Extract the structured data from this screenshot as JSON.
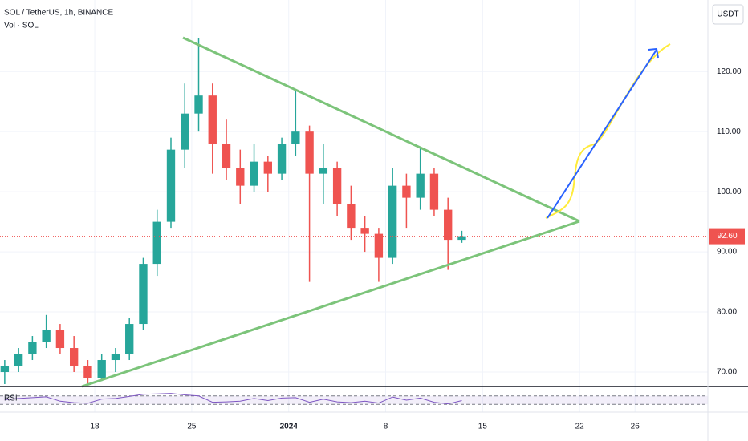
{
  "chart_data": {
    "type": "candlestick",
    "title": "SOL / TetherUS, 1h, BINANCE",
    "subtitle": "Vol · SOL",
    "currency": "USDT",
    "x": [
      -6.5,
      -5.5,
      -4.5,
      -3.5,
      -2.5,
      -1.5,
      -0.5,
      0.5,
      1.5,
      2.5,
      3.5,
      4.5,
      5.5,
      6.5,
      7.5,
      8.5,
      9.5,
      10.5,
      11.5,
      12.5,
      13.5,
      14.5,
      15.5,
      16.5,
      17.5,
      18.5,
      19.5,
      20.5,
      21.5,
      22.5,
      23.5,
      24.5,
      25.5,
      26.5
    ],
    "open": [
      70,
      71,
      73,
      75,
      77,
      74,
      71,
      69,
      72,
      73,
      78,
      88,
      95,
      107,
      113,
      116,
      108,
      104,
      101,
      105,
      103,
      108,
      110,
      103,
      104,
      98,
      94,
      93,
      89,
      101,
      99,
      103,
      97,
      92
    ],
    "high": [
      72,
      74,
      76,
      79.5,
      78,
      76,
      72,
      73,
      74,
      79,
      89,
      97,
      109,
      118,
      125.5,
      118,
      112,
      107,
      108,
      106,
      109,
      117,
      111,
      108,
      105,
      101,
      96,
      94,
      104,
      103,
      107.5,
      104,
      99,
      93.5
    ],
    "low": [
      68,
      70,
      72,
      74,
      73,
      70,
      67.8,
      68.5,
      70,
      72,
      77,
      86,
      94,
      104,
      110,
      103,
      102,
      98,
      100,
      100,
      102,
      106,
      85,
      98,
      96,
      92,
      90,
      85,
      88,
      94,
      97,
      96,
      87,
      91.5
    ],
    "close": [
      71,
      73,
      75,
      77,
      74,
      71,
      69,
      72,
      73,
      78,
      88,
      95,
      107,
      113,
      116,
      108,
      104,
      101,
      105,
      103,
      108,
      110,
      103,
      104,
      98,
      94,
      93,
      89,
      101,
      99,
      103,
      97,
      92,
      92.6
    ],
    "up_color": "#26a69a",
    "down_color": "#ef5350",
    "xlim": [
      -6.84,
      44.26
    ],
    "ylim": [
      67.6,
      131.9
    ],
    "xticks": [
      {
        "value": 0,
        "label": "18"
      },
      {
        "value": 7,
        "label": "25"
      },
      {
        "value": 14,
        "label": "2024"
      },
      {
        "value": 21,
        "label": "8"
      },
      {
        "value": 28,
        "label": "15"
      },
      {
        "value": 35,
        "label": "22"
      },
      {
        "value": 39,
        "label": "26"
      }
    ],
    "yticks": [
      {
        "value": 70,
        "label": "70.00"
      },
      {
        "value": 80,
        "label": "80.00"
      },
      {
        "value": 90,
        "label": "90.00"
      },
      {
        "value": 100,
        "label": "100.00"
      },
      {
        "value": 110,
        "label": "110.00"
      },
      {
        "value": 120,
        "label": "120.00"
      }
    ],
    "grid": true,
    "last_price": {
      "value": 92.6,
      "label": "92.60"
    },
    "rsi": {
      "name": "RSI",
      "color": "#7e57c2",
      "ylim": [
        0,
        100
      ],
      "bands": [
        30,
        70
      ],
      "values": [
        52,
        58,
        62,
        66,
        45,
        38,
        35,
        55,
        58,
        68,
        78,
        80,
        82,
        75,
        70,
        40,
        42,
        45,
        58,
        48,
        60,
        62,
        40,
        55,
        42,
        38,
        45,
        36,
        65,
        50,
        60,
        40,
        32,
        48
      ]
    }
  }
}
